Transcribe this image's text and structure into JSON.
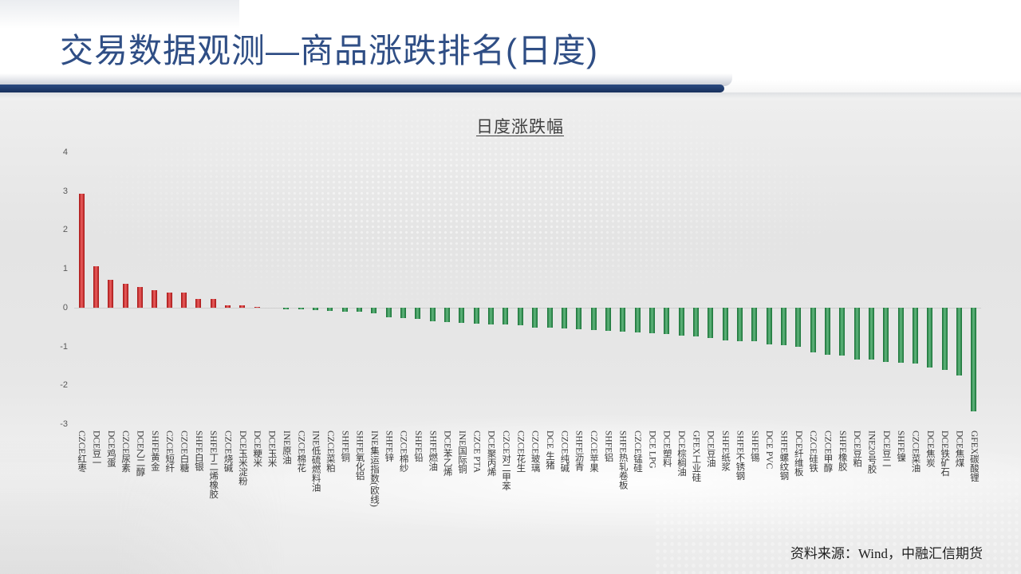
{
  "slide": {
    "title": "交易数据观测—商品涨跌排名(日度)",
    "source": "资料来源：Wind，中融汇信期货"
  },
  "colors": {
    "title": "#2f4e85",
    "band": "#2c4b82",
    "positive": "#e41a1a",
    "negative": "#1f9a48"
  },
  "chart_data": {
    "type": "bar",
    "title": "日度涨跌幅",
    "xlabel": "",
    "ylabel": "",
    "ylim": [
      -3,
      4
    ],
    "yticks": [
      4,
      3,
      2,
      1,
      0,
      -1,
      -2,
      -3
    ],
    "grid": false,
    "categories": [
      "CZCE红枣",
      "DCE豆一",
      "DCE鸡蛋",
      "CZCE尿素",
      "DCE乙二醇",
      "SHFE黄金",
      "CZCE短纤",
      "CZCE白糖",
      "SHFE白银",
      "SHFE丁二烯橡胶",
      "CZCE烧碱",
      "DCE玉米淀粉",
      "DCE粳米",
      "DCE玉米",
      "INE原油",
      "CZCE棉花",
      "INE低硫燃料油",
      "CZCE菜粕",
      "SHFE铜",
      "SHFE氧化铝",
      "INE集运指数(欧线)",
      "SHFE锌",
      "CZCE棉纱",
      "SHFE铅",
      "SHFE燃油",
      "DCE苯乙烯",
      "INE国际铜",
      "CZCE PTA",
      "DCE聚丙烯",
      "CZCE对二甲苯",
      "CZCE花生",
      "CZCE玻璃",
      "DCE 生猪",
      "CZCE纯碱",
      "SHFE沥青",
      "CZCE苹果",
      "SHFE铝",
      "SHFE热轧卷板",
      "CZCE锰硅",
      "DCE LPG",
      "DCE塑料",
      "DCE棕榈油",
      "GFEX工业硅",
      "DCE豆油",
      "SHFE纸浆",
      "SHFE不锈钢",
      "SHFE锡",
      "DCE PVC",
      "SHFE螺纹钢",
      "DCE纤维板",
      "CZCE硅铁",
      "CZCE甲醇",
      "SHFE橡胶",
      "DCE豆粕",
      "INE20号胶",
      "DCE豆二",
      "SHFE镍",
      "CZCE菜油",
      "DCE焦炭",
      "DCE铁矿石",
      "DCE焦煤",
      "GFEX碳酸锂"
    ],
    "values": [
      2.94,
      1.06,
      0.71,
      0.61,
      0.53,
      0.45,
      0.39,
      0.38,
      0.23,
      0.22,
      0.06,
      0.05,
      0.02,
      0.0,
      -0.04,
      -0.05,
      -0.06,
      -0.08,
      -0.1,
      -0.11,
      -0.14,
      -0.25,
      -0.27,
      -0.3,
      -0.35,
      -0.37,
      -0.39,
      -0.41,
      -0.43,
      -0.44,
      -0.46,
      -0.51,
      -0.52,
      -0.53,
      -0.56,
      -0.58,
      -0.6,
      -0.62,
      -0.63,
      -0.66,
      -0.68,
      -0.72,
      -0.74,
      -0.78,
      -0.85,
      -0.86,
      -0.87,
      -0.95,
      -0.97,
      -1.01,
      -1.15,
      -1.21,
      -1.23,
      -1.33,
      -1.34,
      -1.4,
      -1.42,
      -1.44,
      -1.54,
      -1.6,
      -1.74,
      -2.67
    ]
  }
}
